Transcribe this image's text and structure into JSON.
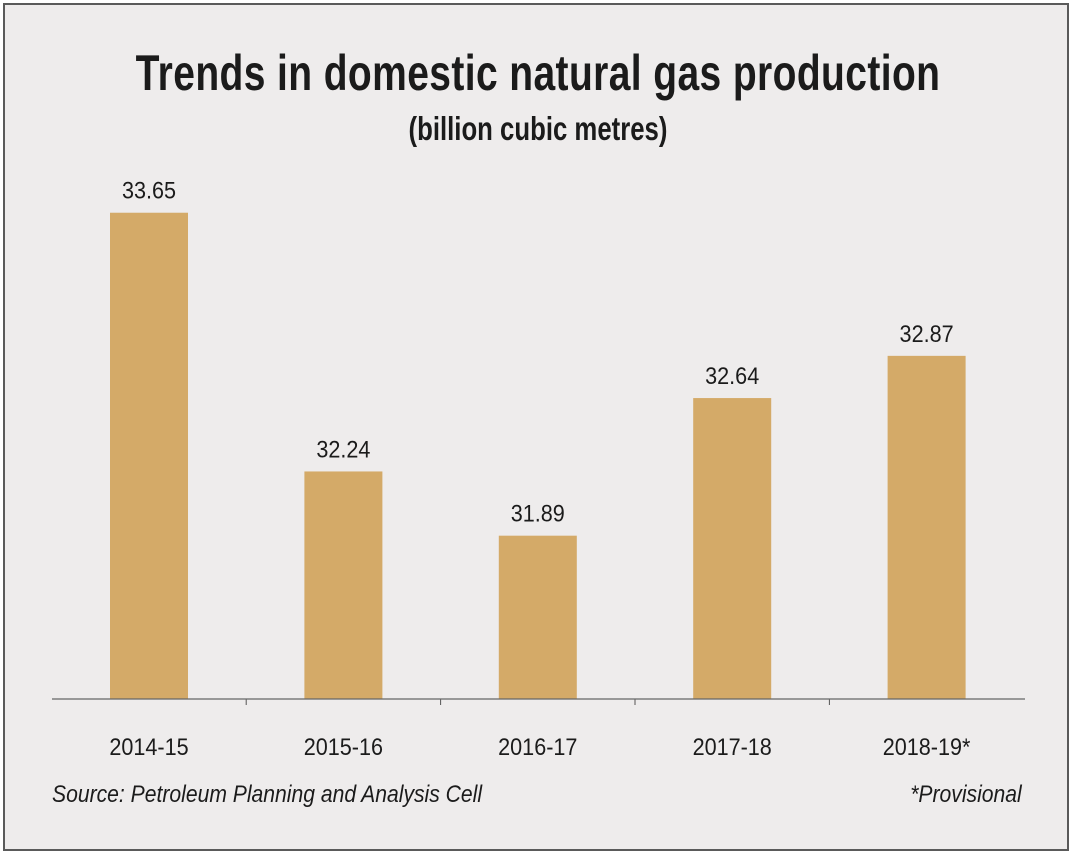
{
  "chart_data": {
    "type": "bar",
    "title": "Trends in domestic natural gas production",
    "subtitle": "(billion cubic metres)",
    "categories": [
      "2014-15",
      "2015-16",
      "2016-17",
      "2017-18",
      "2018-19*"
    ],
    "values": [
      33.65,
      32.24,
      31.89,
      32.64,
      32.87
    ],
    "data_labels": [
      "33.65",
      "32.24",
      "31.89",
      "32.64",
      "32.87"
    ],
    "xlabel": "",
    "ylabel": "",
    "ylim": [
      31,
      34
    ],
    "grid": false,
    "bar_color": "#d4aa68",
    "source": "Source: Petroleum Planning and Analysis Cell",
    "note": "*Provisional"
  }
}
